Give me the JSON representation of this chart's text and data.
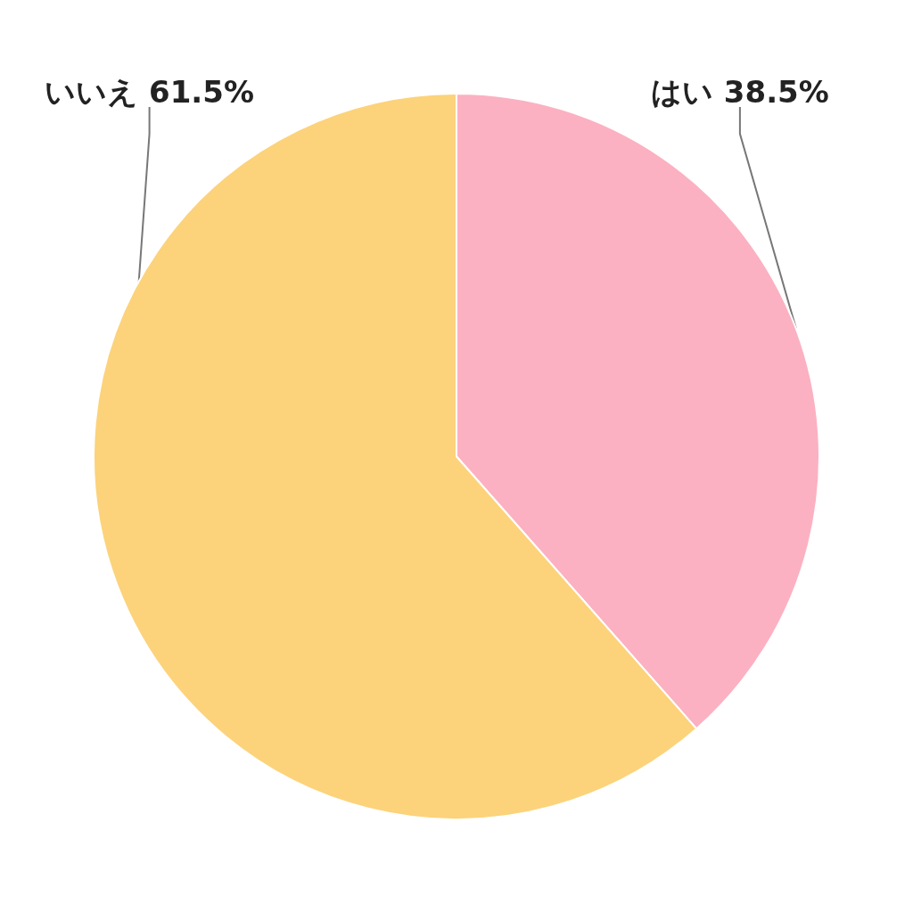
{
  "chart_data": {
    "type": "pie",
    "categories": [
      "はい",
      "いいえ"
    ],
    "values": [
      38.5,
      61.5
    ],
    "colors": [
      "#fbb1c1",
      "#fcd37b"
    ],
    "value_labels": [
      "38.5%",
      "61.5%"
    ],
    "legend": false
  }
}
